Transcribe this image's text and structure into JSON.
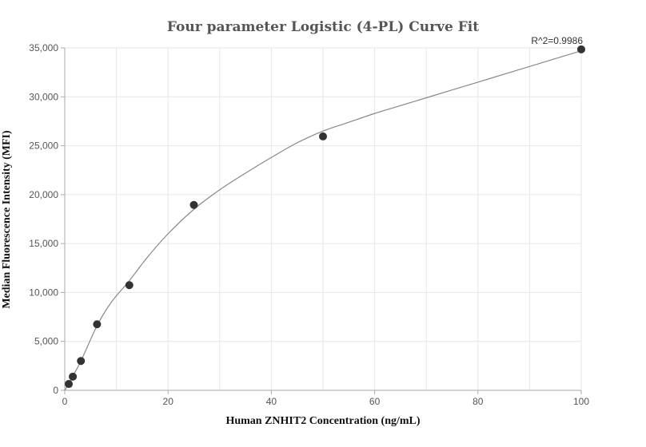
{
  "chart_data": {
    "type": "scatter",
    "title": "Four parameter Logistic (4-PL) Curve Fit",
    "xlabel": "Human ZNHIT2 Concentration (ng/mL)",
    "ylabel": "Median Fluorescence Intensity (MFI)",
    "xlim": [
      0,
      100
    ],
    "ylim": [
      0,
      35000
    ],
    "x_ticks": [
      0,
      20,
      40,
      60,
      80,
      100
    ],
    "y_ticks": [
      0,
      5000,
      10000,
      15000,
      20000,
      25000,
      30000,
      35000
    ],
    "x_tick_labels": [
      "0",
      "20",
      "40",
      "60",
      "80",
      "100"
    ],
    "y_tick_labels": [
      "0",
      "5,000",
      "10,000",
      "15,000",
      "20,000",
      "25,000",
      "30,000",
      "35,000"
    ],
    "grid": true,
    "series": [
      {
        "kind": "points",
        "x": [
          0.78,
          1.56,
          3.13,
          6.25,
          12.5,
          25,
          50,
          100
        ],
        "y": [
          650,
          1400,
          3000,
          6750,
          10750,
          18950,
          25950,
          34850
        ],
        "color": "#333333"
      },
      {
        "kind": "fit-curve",
        "x": [
          0,
          0.78,
          1.56,
          3.13,
          6.25,
          9,
          12.5,
          16,
          20,
          25,
          30,
          35,
          40,
          45,
          50,
          55,
          60,
          65,
          70,
          75,
          80,
          85,
          90,
          95,
          100
        ],
        "y": [
          0,
          700,
          1450,
          3000,
          6600,
          9000,
          11200,
          13600,
          16000,
          18500,
          20500,
          22200,
          23800,
          25300,
          26500,
          27400,
          28300,
          29100,
          29900,
          30700,
          31500,
          32300,
          33100,
          33900,
          34700
        ],
        "color": "#888888"
      }
    ],
    "annotations": [
      {
        "text": "R^2=0.9986",
        "x": 100,
        "y": 34850
      }
    ]
  }
}
